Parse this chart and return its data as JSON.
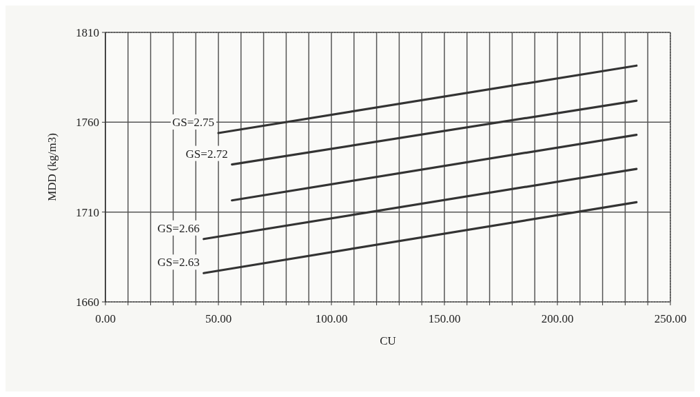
{
  "chart_data": {
    "type": "line",
    "xlabel": "CU",
    "ylabel": "MDD (kg/m3)",
    "xlim": [
      0,
      250
    ],
    "ylim": [
      1660,
      1810
    ],
    "xticks": [
      {
        "value": 0,
        "label": "0.00"
      },
      {
        "value": 10,
        "label": null
      },
      {
        "value": 20,
        "label": null
      },
      {
        "value": 30,
        "label": null
      },
      {
        "value": 40,
        "label": null
      },
      {
        "value": 50,
        "label": "50.00"
      },
      {
        "value": 60,
        "label": null
      },
      {
        "value": 70,
        "label": null
      },
      {
        "value": 80,
        "label": null
      },
      {
        "value": 90,
        "label": null
      },
      {
        "value": 100,
        "label": "100.00"
      },
      {
        "value": 110,
        "label": null
      },
      {
        "value": 120,
        "label": null
      },
      {
        "value": 130,
        "label": null
      },
      {
        "value": 140,
        "label": null
      },
      {
        "value": 150,
        "label": "150.00"
      },
      {
        "value": 160,
        "label": null
      },
      {
        "value": 170,
        "label": null
      },
      {
        "value": 180,
        "label": null
      },
      {
        "value": 190,
        "label": null
      },
      {
        "value": 200,
        "label": "200.00"
      },
      {
        "value": 210,
        "label": null
      },
      {
        "value": 220,
        "label": null
      },
      {
        "value": 230,
        "label": null
      },
      {
        "value": 240,
        "label": null
      },
      {
        "value": 250,
        "label": "250.00"
      }
    ],
    "yticks": [
      1660,
      1710,
      1760,
      1810
    ],
    "grid": true,
    "marker": "none",
    "line_style": "solid",
    "series": [
      {
        "name": "GS=2.75",
        "color": "#333333",
        "x": [
          50,
          235
        ],
        "values": [
          1754,
          1791.5
        ]
      },
      {
        "name": "GS=2.72",
        "color": "#333333",
        "x": [
          56,
          235
        ],
        "values": [
          1736.5,
          1772
        ]
      },
      {
        "color": "#333333",
        "x": [
          56,
          235
        ],
        "values": [
          1716.5,
          1753
        ]
      },
      {
        "name": "GS=2.66",
        "color": "#333333",
        "x": [
          43.5,
          235
        ],
        "values": [
          1695,
          1734
        ]
      },
      {
        "name": "GS=2.63",
        "color": "#333333",
        "x": [
          43.5,
          235
        ],
        "values": [
          1676,
          1715.5
        ]
      }
    ]
  }
}
